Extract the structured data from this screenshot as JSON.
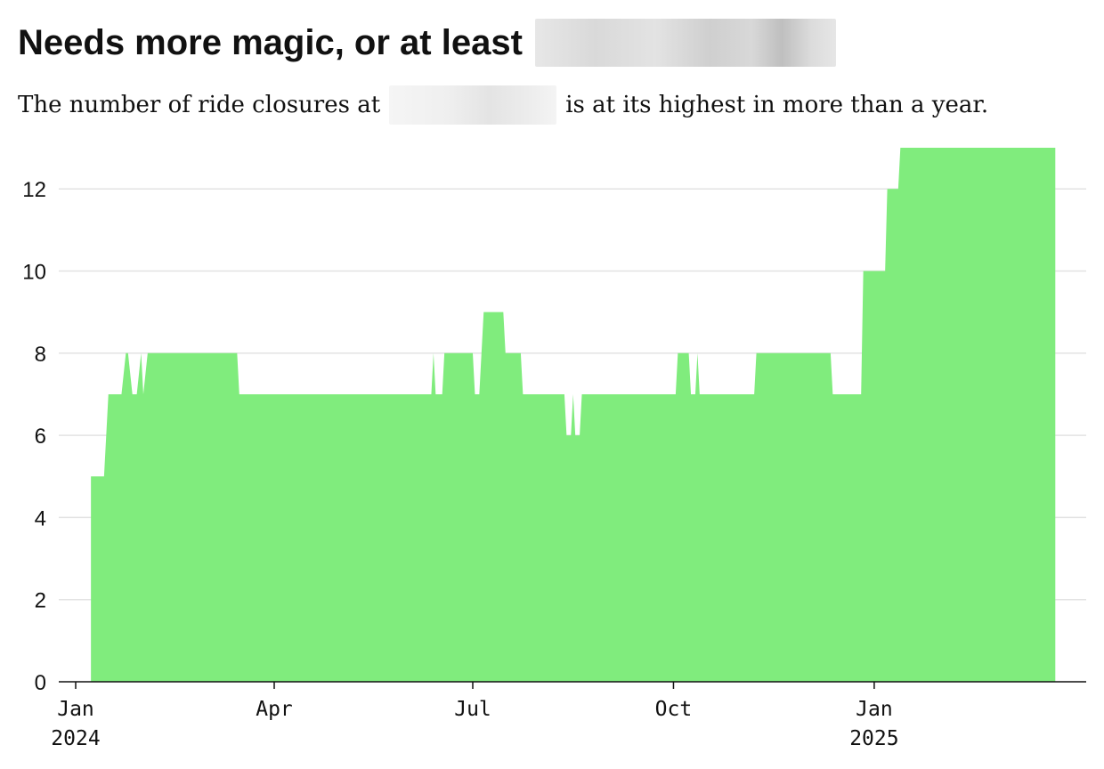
{
  "header": {
    "title": "Needs more magic, or at least",
    "subtitle_before": "The number of ride closures at",
    "subtitle_after": "is at its highest in more than a year."
  },
  "chart_data": {
    "type": "area",
    "title": "Needs more magic, or at least",
    "subtitle": "The number of ride closures at … is at its highest in more than a year.",
    "xlabel": "",
    "ylabel": "",
    "ylim": [
      0,
      13
    ],
    "yticks": [
      0,
      2,
      4,
      6,
      8,
      10,
      12
    ],
    "xlim": [
      "2024-01-01",
      "2025-03-31"
    ],
    "xticks": [
      {
        "date": "2024-01-01",
        "label": "Jan",
        "sublabel": "2024"
      },
      {
        "date": "2024-04-01",
        "label": "Apr",
        "sublabel": ""
      },
      {
        "date": "2024-07-01",
        "label": "Jul",
        "sublabel": ""
      },
      {
        "date": "2024-10-01",
        "label": "Oct",
        "sublabel": ""
      },
      {
        "date": "2025-01-01",
        "label": "Jan",
        "sublabel": "2025"
      }
    ],
    "grid": true,
    "legend": "none",
    "color": "#80ec7d",
    "series": [
      {
        "x": [
          "2024-01-08",
          "2024-01-14",
          "2024-01-16",
          "2024-01-22",
          "2024-01-24",
          "2024-01-25",
          "2024-01-27",
          "2024-01-29",
          "2024-01-31",
          "2024-02-01",
          "2024-02-03",
          "2024-03-15",
          "2024-03-16",
          "2024-06-12",
          "2024-06-13",
          "2024-06-14",
          "2024-06-17",
          "2024-06-18",
          "2024-06-19",
          "2024-07-01",
          "2024-07-02",
          "2024-07-04",
          "2024-07-05",
          "2024-07-06",
          "2024-07-07",
          "2024-07-15",
          "2024-07-16",
          "2024-07-23",
          "2024-07-24",
          "2024-08-12",
          "2024-08-13",
          "2024-08-15",
          "2024-08-16",
          "2024-08-17",
          "2024-08-19",
          "2024-08-20",
          "2024-08-21",
          "2024-10-02",
          "2024-10-03",
          "2024-10-08",
          "2024-10-09",
          "2024-10-11",
          "2024-10-12",
          "2024-10-13",
          "2024-11-07",
          "2024-11-08",
          "2024-12-12",
          "2024-12-13",
          "2024-12-26",
          "2024-12-27",
          "2024-12-31",
          "2025-01-06",
          "2025-01-07",
          "2025-01-12",
          "2025-01-13",
          "2025-03-25"
        ],
        "y": [
          5,
          5,
          7,
          7,
          8,
          8,
          7,
          7,
          8,
          7,
          8,
          8,
          7,
          7,
          8,
          7,
          7,
          8,
          8,
          8,
          7,
          7,
          8,
          9,
          9,
          9,
          8,
          8,
          7,
          7,
          6,
          6,
          7,
          6,
          6,
          7,
          7,
          7,
          8,
          8,
          7,
          7,
          8,
          7,
          7,
          8,
          8,
          7,
          7,
          10,
          10,
          10,
          12,
          12,
          13,
          13
        ]
      }
    ]
  }
}
